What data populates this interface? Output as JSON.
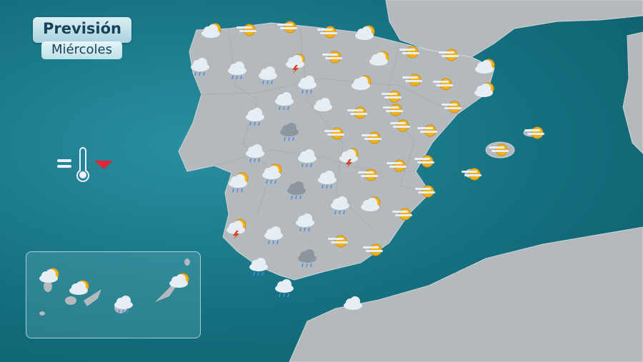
{
  "header": {
    "title": "Previsión",
    "subtitle": "Miércoles"
  },
  "legend": {
    "icon": "thermometer-icon",
    "trend": "temperature-down",
    "trend_color": "#e0263a"
  },
  "colors": {
    "sea": "#14707f",
    "land": "#b4b9bd",
    "sun": "#f2b21c",
    "cloud": "#e6eef4",
    "bolt": "#d8401c",
    "rain": "#4a8ee0"
  },
  "icons": [
    "sun-cloud",
    "haze-sun",
    "haze-sun",
    "haze-sun",
    "sun-cloud",
    "rain",
    "rain",
    "cloud-drizzle",
    "storm",
    "haze-sun",
    "sun-cloud",
    "haze-sun",
    "haze-sun",
    "sun-cloud",
    "rain",
    "sun-cloud",
    "haze-sun",
    "haze-sun",
    "haze-sun",
    "sun-cloud",
    "rain",
    "cloud",
    "haze-sun",
    "haze-sun",
    "haze-sun",
    "rain",
    "dark-rain",
    "haze-sun",
    "haze-sun",
    "haze-sun",
    "haze-sun",
    "haze-sun",
    "haze-sun",
    "rain",
    "rain",
    "storm",
    "haze-sun",
    "haze-sun",
    "haze-sun",
    "haze-sun",
    "sun-rain",
    "sun-rain",
    "rain",
    "dark-rain",
    "rain",
    "sun-cloud",
    "haze-sun",
    "storm-sun",
    "rain",
    "rain",
    "haze-sun",
    "haze-sun",
    "haze-sun",
    "rain",
    "dark-rain",
    "rain",
    "cloud"
  ],
  "canary_icons": [
    "sun-cloud",
    "sun-cloud",
    "rain",
    "sun-cloud"
  ]
}
